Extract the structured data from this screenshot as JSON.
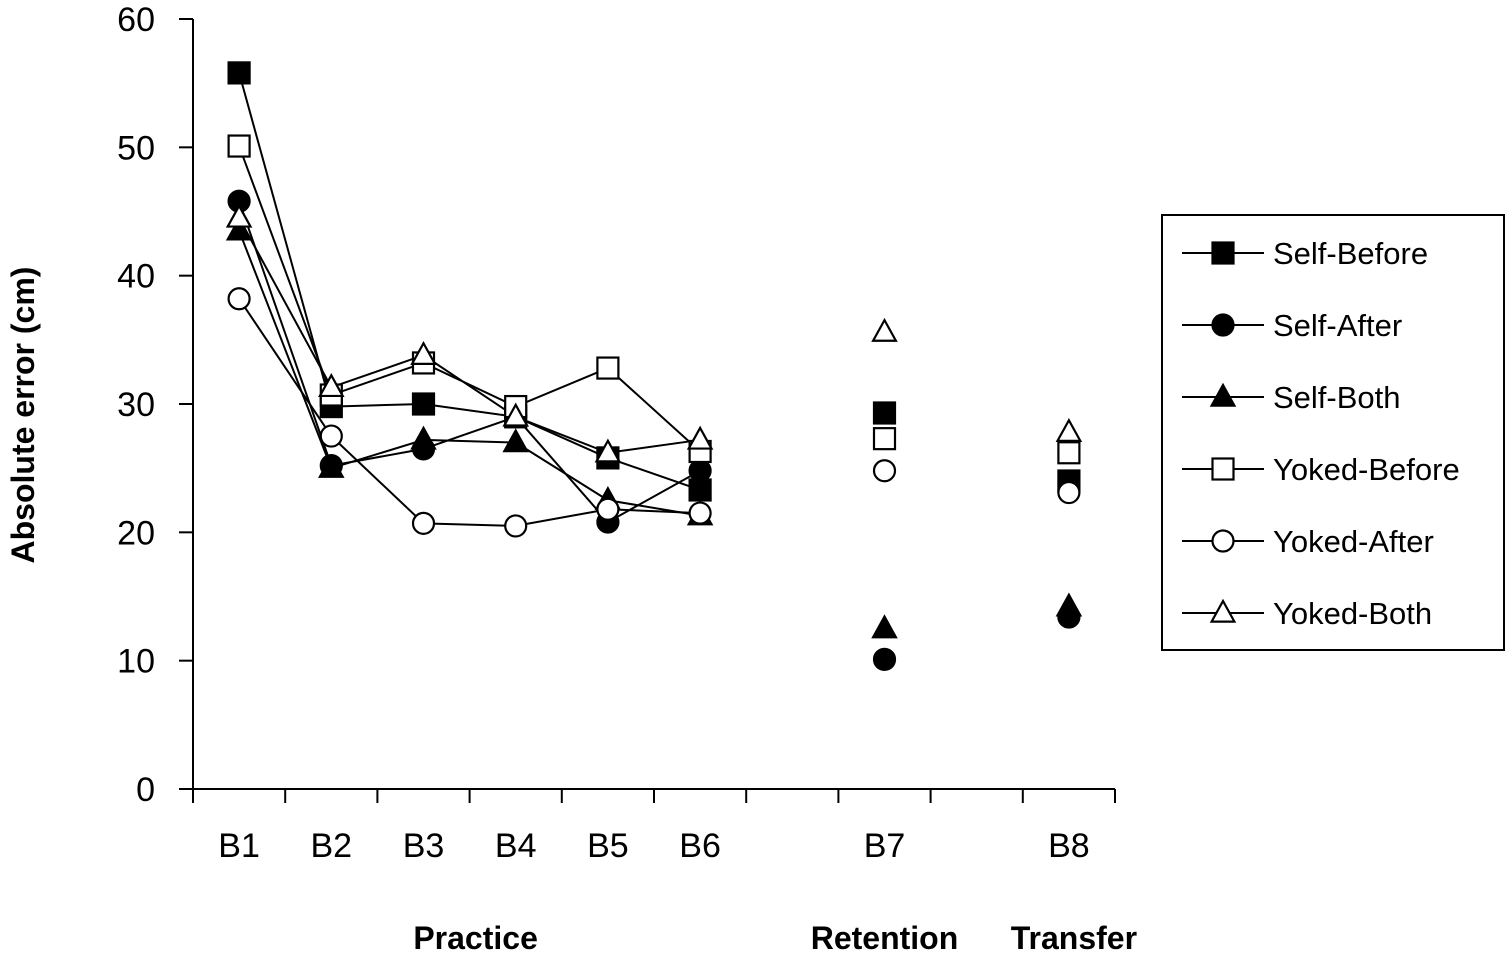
{
  "chart_data": {
    "type": "line",
    "ylabel": "Absolute error (cm)",
    "ylim": [
      0,
      60
    ],
    "yticks": [
      "0",
      "10",
      "20",
      "30",
      "40",
      "50",
      "60"
    ],
    "categories": [
      "B1",
      "B2",
      "B3",
      "B4",
      "B5",
      "B6",
      "B7",
      "B8"
    ],
    "group_labels": [
      {
        "label": "Practice",
        "categories": [
          "B1",
          "B2",
          "B3",
          "B4",
          "B5",
          "B6"
        ]
      },
      {
        "label": "Retention",
        "categories": [
          "B7"
        ]
      },
      {
        "label": "Transfer",
        "categories": [
          "B8"
        ]
      }
    ],
    "legend_placement": "right",
    "grid": false,
    "series": [
      {
        "name": "Self-Before",
        "marker": "square",
        "filled": true,
        "values": [
          55.8,
          29.8,
          30.0,
          29.0,
          25.8,
          23.3,
          29.3,
          24.0
        ]
      },
      {
        "name": "Self-After",
        "marker": "circle",
        "filled": true,
        "values": [
          45.8,
          25.2,
          26.5,
          29.0,
          20.8,
          24.8,
          10.1,
          13.4
        ]
      },
      {
        "name": "Self-Both",
        "marker": "triangle",
        "filled": true,
        "values": [
          43.5,
          25.0,
          27.2,
          27.0,
          22.5,
          21.3,
          12.5,
          14.2
        ]
      },
      {
        "name": "Yoked-Before",
        "marker": "square",
        "filled": false,
        "values": [
          50.1,
          30.7,
          33.2,
          29.8,
          32.8,
          26.3,
          27.3,
          26.2
        ]
      },
      {
        "name": "Yoked-After",
        "marker": "circle",
        "filled": false,
        "values": [
          38.2,
          27.5,
          20.7,
          20.5,
          21.8,
          21.5,
          24.8,
          23.1
        ]
      },
      {
        "name": "Yoked-Both",
        "marker": "triangle",
        "filled": false,
        "values": [
          44.5,
          31.3,
          33.8,
          29.0,
          26.2,
          27.2,
          35.6,
          27.8
        ]
      }
    ]
  }
}
